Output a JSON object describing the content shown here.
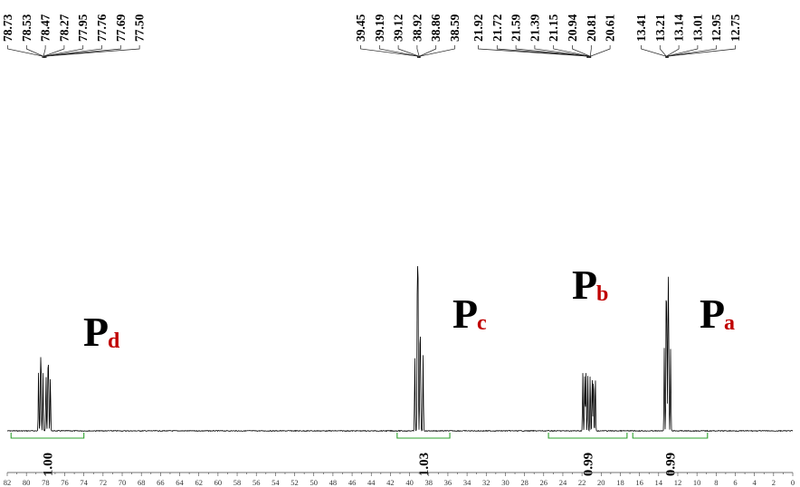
{
  "chart_data": {
    "type": "line",
    "xlabel": "",
    "ylabel": "",
    "x_reversed": true,
    "xlim": [
      82,
      0
    ],
    "x_ticks": [
      "82",
      "80",
      "78",
      "76",
      "74",
      "72",
      "70",
      "68",
      "66",
      "64",
      "62",
      "60",
      "58",
      "56",
      "54",
      "52",
      "50",
      "48",
      "46",
      "44",
      "42",
      "40",
      "38",
      "36",
      "34",
      "32",
      "30",
      "28",
      "26",
      "24",
      "22",
      "20",
      "18",
      "16",
      "14",
      "12",
      "10",
      "8",
      "6",
      "4",
      "2",
      "0"
    ],
    "peaks": [
      {
        "ppm": 78.73,
        "height": 0.38
      },
      {
        "ppm": 78.53,
        "height": 0.35
      },
      {
        "ppm": 78.47,
        "height": 0.37
      },
      {
        "ppm": 78.27,
        "height": 0.36
      },
      {
        "ppm": 77.95,
        "height": 0.36
      },
      {
        "ppm": 77.76,
        "height": 0.34
      },
      {
        "ppm": 77.69,
        "height": 0.37
      },
      {
        "ppm": 77.5,
        "height": 0.35
      },
      {
        "ppm": 39.45,
        "height": 0.47
      },
      {
        "ppm": 39.19,
        "height": 0.92
      },
      {
        "ppm": 39.12,
        "height": 0.95
      },
      {
        "ppm": 38.92,
        "height": 0.47
      },
      {
        "ppm": 38.86,
        "height": 0.46
      },
      {
        "ppm": 38.59,
        "height": 0.47
      },
      {
        "ppm": 21.92,
        "height": 0.36
      },
      {
        "ppm": 21.72,
        "height": 0.35
      },
      {
        "ppm": 21.59,
        "height": 0.36
      },
      {
        "ppm": 21.39,
        "height": 0.35
      },
      {
        "ppm": 21.15,
        "height": 0.36
      },
      {
        "ppm": 20.94,
        "height": 0.35
      },
      {
        "ppm": 20.81,
        "height": 0.36
      },
      {
        "ppm": 20.61,
        "height": 0.35
      },
      {
        "ppm": 13.41,
        "height": 0.52
      },
      {
        "ppm": 13.21,
        "height": 0.9
      },
      {
        "ppm": 13.14,
        "height": 0.52
      },
      {
        "ppm": 13.01,
        "height": 0.88
      },
      {
        "ppm": 12.95,
        "height": 0.52
      },
      {
        "ppm": 12.75,
        "height": 0.51
      }
    ],
    "peak_label_groups": [
      {
        "labels": [
          "78.73",
          "78.53",
          "78.47",
          "78.27",
          "77.95",
          "77.76",
          "77.69",
          "77.50"
        ],
        "center_ppm": 78.1
      },
      {
        "labels": [
          "39.45",
          "39.19",
          "39.12",
          "38.92",
          "38.86",
          "38.59"
        ],
        "center_ppm": 39.0
      },
      {
        "labels": [
          "21.92",
          "21.72",
          "21.59",
          "21.39",
          "21.15",
          "20.94",
          "20.81",
          "20.61"
        ],
        "center_ppm": 21.25
      },
      {
        "labels": [
          "13.41",
          "13.21",
          "13.14",
          "13.01",
          "12.95",
          "12.75"
        ],
        "center_ppm": 13.1
      }
    ],
    "integrals": [
      {
        "value": "1.00",
        "from_ppm": 81.6,
        "to_ppm": 74.0
      },
      {
        "value": "1.03",
        "from_ppm": 41.3,
        "to_ppm": 35.8
      },
      {
        "value": "0.99",
        "from_ppm": 25.5,
        "to_ppm": 17.3
      },
      {
        "value": "0.99",
        "from_ppm": 16.7,
        "to_ppm": 8.9
      }
    ],
    "assignments": [
      {
        "letter": "P",
        "sub": "d",
        "sub_color": "#c00000"
      },
      {
        "letter": "P",
        "sub": "c",
        "sub_color": "#c00000"
      },
      {
        "letter": "P",
        "sub": "b",
        "sub_color": "#c00000"
      },
      {
        "letter": "P",
        "sub": "a",
        "sub_color": "#c00000"
      }
    ],
    "colors": {
      "spectrum": "#000000",
      "integral": "#2ca02c",
      "axis": "#333333"
    }
  }
}
